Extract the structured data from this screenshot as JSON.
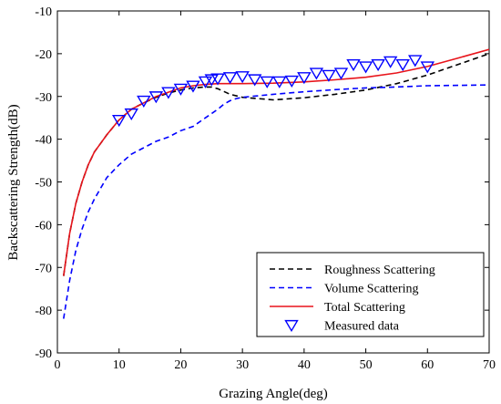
{
  "chart_data": {
    "type": "line",
    "xlabel": "Grazing Angle(deg)",
    "ylabel": "Backscattering Strength(dB)",
    "xlim": [
      0,
      70
    ],
    "ylim": [
      -90,
      -10
    ],
    "xticks": [
      0,
      10,
      20,
      30,
      40,
      50,
      60,
      70
    ],
    "yticks": [
      -90,
      -80,
      -70,
      -60,
      -50,
      -40,
      -30,
      -20,
      -10
    ],
    "grid": false,
    "legend_position": "bottom-right",
    "series": [
      {
        "name": "Roughness Scattering",
        "style": "dashed",
        "color": "#000000",
        "x": [
          1,
          2,
          3,
          4,
          5,
          6,
          7,
          8,
          10,
          12,
          14,
          16,
          18,
          20,
          22,
          24,
          25,
          26,
          28,
          30,
          35,
          40,
          45,
          50,
          55,
          60,
          65,
          70
        ],
        "y": [
          -72,
          -62,
          -55,
          -50,
          -46,
          -43,
          -41,
          -39,
          -35.5,
          -33,
          -31.5,
          -30.2,
          -29.2,
          -28.5,
          -28,
          -27.8,
          -27.8,
          -28.2,
          -29.5,
          -30.2,
          -30.8,
          -30.3,
          -29.5,
          -28.5,
          -27,
          -25,
          -22.5,
          -20
        ]
      },
      {
        "name": "Volume Scattering",
        "style": "dashed",
        "color": "#0000ff",
        "x": [
          1,
          2,
          3,
          4,
          5,
          6,
          8,
          10,
          12,
          14,
          16,
          18,
          20,
          22,
          24,
          26,
          27,
          28,
          29,
          30,
          35,
          40,
          45,
          50,
          55,
          60,
          65,
          70
        ],
        "y": [
          -82,
          -73,
          -66,
          -61,
          -57,
          -54,
          -49,
          -46,
          -43.5,
          -42,
          -40.5,
          -39.5,
          -38,
          -37,
          -35,
          -33,
          -31.8,
          -31,
          -30.5,
          -30.2,
          -29.5,
          -28.9,
          -28.4,
          -28,
          -27.8,
          -27.5,
          -27.4,
          -27.3
        ]
      },
      {
        "name": "Total Scattering",
        "style": "solid",
        "color": "#e8141b",
        "x": [
          1,
          2,
          3,
          4,
          5,
          6,
          7,
          8,
          10,
          12,
          14,
          16,
          18,
          20,
          22,
          24,
          26,
          28,
          30,
          35,
          40,
          45,
          50,
          55,
          60,
          65,
          70
        ],
        "y": [
          -72,
          -62,
          -55,
          -50,
          -46,
          -43,
          -41,
          -39,
          -35.5,
          -33,
          -31.5,
          -30,
          -29,
          -28,
          -27.5,
          -27.2,
          -27,
          -27,
          -27,
          -26.9,
          -26.6,
          -26.1,
          -25.5,
          -24.5,
          -23,
          -21,
          -19
        ]
      },
      {
        "name": "Measured data",
        "style": "marker",
        "marker": "triangle-down",
        "color": "#0000ff",
        "x": [
          10,
          12,
          14,
          16,
          18,
          20,
          22,
          24,
          25,
          26,
          28,
          30,
          32,
          34,
          36,
          38,
          40,
          42,
          44,
          46,
          48,
          50,
          52,
          54,
          56,
          58,
          60
        ],
        "y": [
          -35.5,
          -34,
          -31,
          -30,
          -29,
          -28.2,
          -27.5,
          -26.5,
          -26,
          -25.8,
          -25.5,
          -25.3,
          -26,
          -26.5,
          -26.5,
          -26.3,
          -25.5,
          -24.5,
          -25,
          -24.5,
          -22.5,
          -23,
          -22.5,
          -21.8,
          -22.5,
          -21.5,
          -23
        ]
      }
    ]
  }
}
